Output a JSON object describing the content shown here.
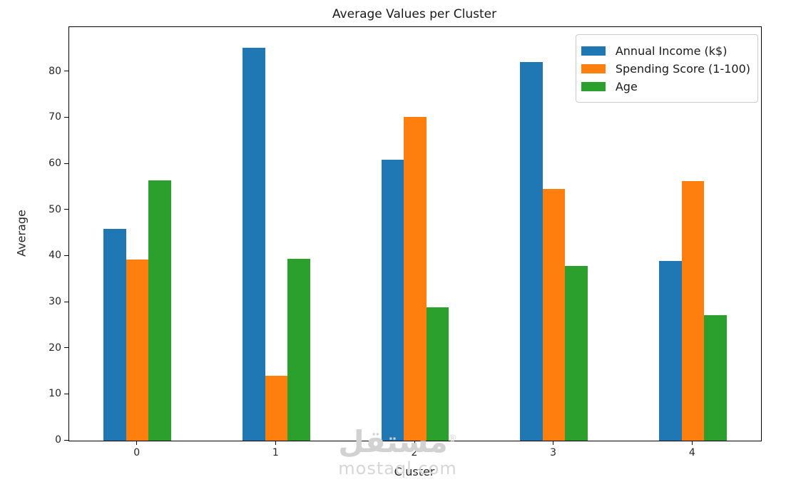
{
  "figure": {
    "background": "#ffffff",
    "axis_color": "#000000",
    "text_color": "#262626"
  },
  "chart_data": {
    "type": "bar",
    "title": "Average Values per Cluster",
    "xlabel": "Cluster",
    "ylabel": "Average",
    "categories": [
      "0",
      "1",
      "2",
      "3",
      "4"
    ],
    "series": [
      {
        "name": "Annual Income (k$)",
        "color": "#1f77b4",
        "values": [
          46.0,
          85.2,
          61.0,
          82.1,
          38.9
        ]
      },
      {
        "name": "Spending Score (1-100)",
        "color": "#ff7f0e",
        "values": [
          39.3,
          14.1,
          70.2,
          54.6,
          56.3
        ]
      },
      {
        "name": "Age",
        "color": "#2ca02c",
        "values": [
          56.5,
          39.5,
          28.9,
          37.9,
          27.2
        ]
      }
    ],
    "ylim": [
      0,
      89.7
    ],
    "yticks": [
      0,
      10,
      20,
      30,
      40,
      50,
      60,
      70,
      80
    ],
    "grid": false,
    "legend_position": "upper right"
  },
  "watermark": {
    "reg": "®",
    "text_ar": "مستقل",
    "text_en": "mostaql.com",
    "color": "#d2d2d2"
  }
}
